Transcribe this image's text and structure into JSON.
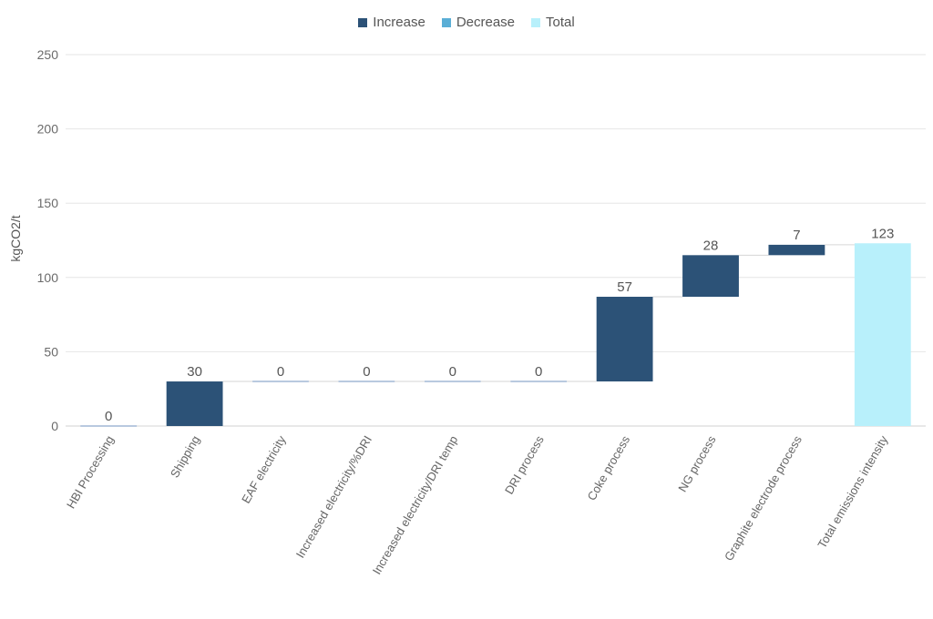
{
  "legend": {
    "items": [
      {
        "label": "Increase",
        "color": "#2c5277"
      },
      {
        "label": "Decrease",
        "color": "#5aaed6"
      },
      {
        "label": "Total",
        "color": "#b8f0fb"
      }
    ]
  },
  "chart_data": {
    "type": "bar",
    "subtype": "waterfall",
    "title": "",
    "xlabel": "",
    "ylabel": "kgCO2/t",
    "ylim": [
      0,
      250
    ],
    "yticks": [
      0,
      50,
      100,
      150,
      200,
      250
    ],
    "grid": true,
    "legend_position": "top-center",
    "categories": [
      "HBI Processing",
      "Shipping",
      "EAF electricity",
      "Increased electricity/%DRI",
      "Increased electricity/DRI temp",
      "DRI process",
      "Coke process",
      "NG process",
      "Graphite electrode process",
      "Total emissions intensity"
    ],
    "values": [
      0,
      30,
      0,
      0,
      0,
      0,
      57,
      28,
      7,
      123
    ],
    "kinds": [
      "increase",
      "increase",
      "increase",
      "increase",
      "increase",
      "increase",
      "increase",
      "increase",
      "increase",
      "total"
    ],
    "data_labels": [
      "0",
      "30",
      "0",
      "0",
      "0",
      "0",
      "57",
      "28",
      "7",
      "123"
    ],
    "colors": {
      "increase": "#2c5277",
      "decrease": "#5aaed6",
      "total": "#b8f0fb",
      "zero_step": "#b8c9df",
      "grid": "#e6e6e6",
      "connector": "#d6d6d6"
    }
  }
}
